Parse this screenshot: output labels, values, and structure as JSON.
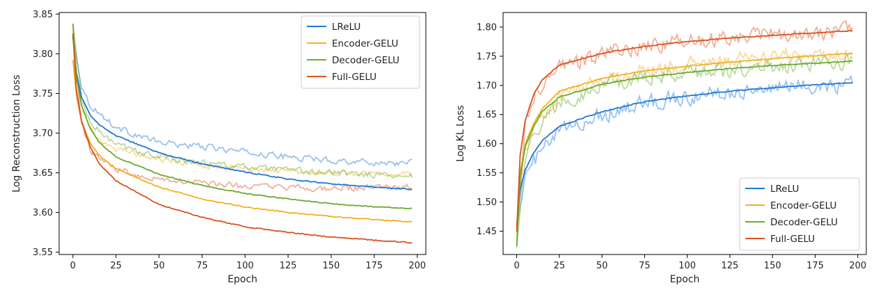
{
  "colors": {
    "LReLU": "#1f77d4",
    "Encoder-GELU": "#f2b01e",
    "Decoder-GELU": "#6aaa2f",
    "Full-GELU": "#d9531e"
  },
  "chart_data": [
    {
      "type": "line",
      "title": "",
      "xlabel": "Epoch",
      "ylabel": "Log Reconstruction Loss",
      "xlim": [
        -8,
        205
      ],
      "ylim": [
        3.547,
        3.852
      ],
      "xticks": [
        0,
        25,
        50,
        75,
        100,
        125,
        150,
        175,
        200
      ],
      "xtick_labels": [
        "0",
        "25",
        "50",
        "75",
        "100",
        "125",
        "150",
        "175",
        "200"
      ],
      "yticks": [
        3.55,
        3.6,
        3.65,
        3.7,
        3.75,
        3.8,
        3.85
      ],
      "ytick_labels": [
        "3.55",
        "3.60",
        "3.65",
        "3.70",
        "3.75",
        "3.80",
        "3.85"
      ],
      "grid": false,
      "legend_position": "upper right",
      "epochs": [
        0,
        197
      ],
      "series": [
        {
          "name": "LReLU",
          "smoothed": [
            [
              0,
              3.822
            ],
            [
              2,
              3.776
            ],
            [
              5,
              3.745
            ],
            [
              10,
              3.723
            ],
            [
              15,
              3.711
            ],
            [
              25,
              3.697
            ],
            [
              50,
              3.675
            ],
            [
              75,
              3.661
            ],
            [
              100,
              3.651
            ],
            [
              125,
              3.642
            ],
            [
              150,
              3.636
            ],
            [
              175,
              3.632
            ],
            [
              197,
              3.629
            ]
          ],
          "raw": [
            [
              0,
              3.822
            ],
            [
              5,
              3.76
            ],
            [
              10,
              3.735
            ],
            [
              25,
              3.707
            ],
            [
              50,
              3.688
            ],
            [
              75,
              3.683
            ],
            [
              100,
              3.676
            ],
            [
              125,
              3.67
            ],
            [
              150,
              3.666
            ],
            [
              175,
              3.663
            ],
            [
              197,
              3.662
            ]
          ]
        },
        {
          "name": "Encoder-GELU",
          "smoothed": [
            [
              0,
              3.792
            ],
            [
              2,
              3.748
            ],
            [
              5,
              3.715
            ],
            [
              10,
              3.688
            ],
            [
              15,
              3.672
            ],
            [
              25,
              3.655
            ],
            [
              50,
              3.632
            ],
            [
              75,
              3.617
            ],
            [
              100,
              3.607
            ],
            [
              125,
              3.6
            ],
            [
              150,
              3.595
            ],
            [
              175,
              3.591
            ],
            [
              197,
              3.588
            ]
          ],
          "raw": [
            [
              0,
              3.792
            ],
            [
              5,
              3.735
            ],
            [
              10,
              3.703
            ],
            [
              25,
              3.68
            ],
            [
              50,
              3.667
            ],
            [
              75,
              3.66
            ],
            [
              100,
              3.655
            ],
            [
              125,
              3.652
            ],
            [
              150,
              3.65
            ],
            [
              175,
              3.649
            ],
            [
              197,
              3.648
            ]
          ]
        },
        {
          "name": "Decoder-GELU",
          "smoothed": [
            [
              0,
              3.838
            ],
            [
              2,
              3.772
            ],
            [
              5,
              3.735
            ],
            [
              10,
              3.706
            ],
            [
              15,
              3.689
            ],
            [
              25,
              3.67
            ],
            [
              50,
              3.648
            ],
            [
              75,
              3.634
            ],
            [
              100,
              3.624
            ],
            [
              125,
              3.617
            ],
            [
              150,
              3.611
            ],
            [
              175,
              3.607
            ],
            [
              197,
              3.605
            ]
          ],
          "raw": [
            [
              0,
              3.838
            ],
            [
              5,
              3.745
            ],
            [
              10,
              3.712
            ],
            [
              25,
              3.685
            ],
            [
              50,
              3.67
            ],
            [
              75,
              3.663
            ],
            [
              100,
              3.657
            ],
            [
              125,
              3.653
            ],
            [
              150,
              3.65
            ],
            [
              175,
              3.648
            ],
            [
              197,
              3.646
            ]
          ]
        },
        {
          "name": "Full-GELU",
          "smoothed": [
            [
              0,
              3.826
            ],
            [
              2,
              3.755
            ],
            [
              5,
              3.715
            ],
            [
              10,
              3.683
            ],
            [
              15,
              3.662
            ],
            [
              25,
              3.64
            ],
            [
              50,
              3.61
            ],
            [
              75,
              3.594
            ],
            [
              100,
              3.582
            ],
            [
              125,
              3.575
            ],
            [
              150,
              3.569
            ],
            [
              175,
              3.565
            ],
            [
              197,
              3.562
            ]
          ],
          "raw": [
            [
              0,
              3.826
            ],
            [
              5,
              3.715
            ],
            [
              10,
              3.677
            ],
            [
              25,
              3.655
            ],
            [
              50,
              3.642
            ],
            [
              75,
              3.637
            ],
            [
              100,
              3.633
            ],
            [
              125,
              3.631
            ],
            [
              150,
              3.63
            ],
            [
              175,
              3.631
            ],
            [
              197,
              3.632
            ]
          ]
        }
      ]
    },
    {
      "type": "line",
      "title": "",
      "xlabel": "Epoch",
      "ylabel": "Log KL Loss",
      "xlim": [
        -8,
        205
      ],
      "ylim": [
        1.41,
        1.825
      ],
      "xticks": [
        0,
        25,
        50,
        75,
        100,
        125,
        150,
        175,
        200
      ],
      "xtick_labels": [
        "0",
        "25",
        "50",
        "75",
        "100",
        "125",
        "150",
        "175",
        "200"
      ],
      "yticks": [
        1.45,
        1.5,
        1.55,
        1.6,
        1.65,
        1.7,
        1.75,
        1.8
      ],
      "ytick_labels": [
        "1.45",
        "1.50",
        "1.55",
        "1.60",
        "1.65",
        "1.70",
        "1.75",
        "1.80"
      ],
      "grid": false,
      "legend_position": "lower right",
      "epochs": [
        0,
        197
      ],
      "series": [
        {
          "name": "LReLU",
          "smoothed": [
            [
              0,
              1.46
            ],
            [
              2,
              1.52
            ],
            [
              5,
              1.555
            ],
            [
              10,
              1.585
            ],
            [
              15,
              1.605
            ],
            [
              25,
              1.63
            ],
            [
              50,
              1.655
            ],
            [
              75,
              1.672
            ],
            [
              100,
              1.682
            ],
            [
              125,
              1.69
            ],
            [
              150,
              1.696
            ],
            [
              175,
              1.701
            ],
            [
              197,
              1.705
            ]
          ],
          "raw": [
            [
              0,
              1.46
            ],
            [
              5,
              1.54
            ],
            [
              10,
              1.57
            ],
            [
              25,
              1.62
            ],
            [
              50,
              1.65
            ],
            [
              75,
              1.67
            ],
            [
              100,
              1.68
            ],
            [
              125,
              1.69
            ],
            [
              150,
              1.695
            ],
            [
              175,
              1.7
            ],
            [
              197,
              1.7
            ]
          ]
        },
        {
          "name": "Encoder-GELU",
          "smoothed": [
            [
              0,
              1.458
            ],
            [
              2,
              1.55
            ],
            [
              5,
              1.6
            ],
            [
              10,
              1.635
            ],
            [
              15,
              1.66
            ],
            [
              25,
              1.69
            ],
            [
              50,
              1.712
            ],
            [
              75,
              1.725
            ],
            [
              100,
              1.733
            ],
            [
              125,
              1.74
            ],
            [
              150,
              1.746
            ],
            [
              175,
              1.751
            ],
            [
              197,
              1.755
            ]
          ],
          "raw": [
            [
              0,
              1.458
            ],
            [
              5,
              1.59
            ],
            [
              10,
              1.63
            ],
            [
              25,
              1.68
            ],
            [
              50,
              1.71
            ],
            [
              75,
              1.725
            ],
            [
              100,
              1.735
            ],
            [
              125,
              1.742
            ],
            [
              150,
              1.747
            ],
            [
              175,
              1.752
            ],
            [
              197,
              1.755
            ]
          ]
        },
        {
          "name": "Decoder-GELU",
          "smoothed": [
            [
              0,
              1.425
            ],
            [
              2,
              1.545
            ],
            [
              5,
              1.595
            ],
            [
              10,
              1.63
            ],
            [
              15,
              1.655
            ],
            [
              25,
              1.68
            ],
            [
              50,
              1.702
            ],
            [
              75,
              1.714
            ],
            [
              100,
              1.722
            ],
            [
              125,
              1.729
            ],
            [
              150,
              1.734
            ],
            [
              175,
              1.738
            ],
            [
              197,
              1.742
            ]
          ],
          "raw": [
            [
              0,
              1.425
            ],
            [
              5,
              1.58
            ],
            [
              10,
              1.62
            ],
            [
              25,
              1.67
            ],
            [
              50,
              1.7
            ],
            [
              75,
              1.712
            ],
            [
              100,
              1.72
            ],
            [
              125,
              1.727
            ],
            [
              150,
              1.733
            ],
            [
              175,
              1.737
            ],
            [
              197,
              1.741
            ]
          ]
        },
        {
          "name": "Full-GELU",
          "smoothed": [
            [
              0,
              1.45
            ],
            [
              2,
              1.58
            ],
            [
              5,
              1.64
            ],
            [
              10,
              1.685
            ],
            [
              15,
              1.71
            ],
            [
              25,
              1.735
            ],
            [
              50,
              1.755
            ],
            [
              75,
              1.767
            ],
            [
              100,
              1.775
            ],
            [
              125,
              1.781
            ],
            [
              150,
              1.786
            ],
            [
              175,
              1.79
            ],
            [
              197,
              1.794
            ]
          ],
          "raw": [
            [
              0,
              1.45
            ],
            [
              5,
              1.63
            ],
            [
              10,
              1.68
            ],
            [
              25,
              1.73
            ],
            [
              50,
              1.755
            ],
            [
              75,
              1.768
            ],
            [
              100,
              1.776
            ],
            [
              125,
              1.782
            ],
            [
              150,
              1.787
            ],
            [
              175,
              1.791
            ],
            [
              197,
              1.794
            ]
          ]
        }
      ]
    }
  ]
}
